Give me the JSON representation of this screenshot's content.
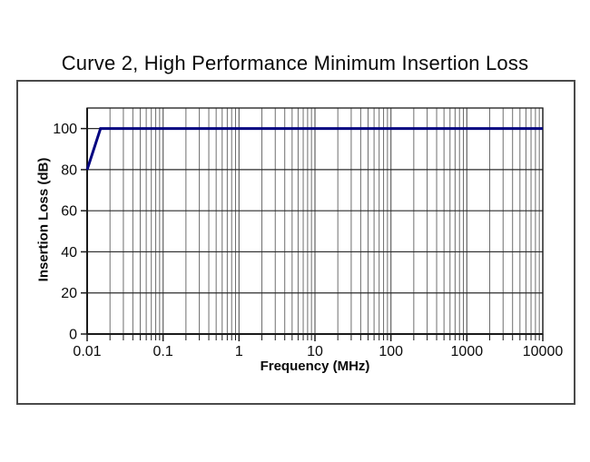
{
  "title": "Curve 2, High Performance Minimum Insertion Loss",
  "chart_data": {
    "type": "line",
    "title": "Curve 2, High Performance Minimum Insertion Loss",
    "xlabel": "Frequency (MHz)",
    "ylabel": "Insertion Loss (dB)",
    "x_scale": "log",
    "xlim": [
      0.01,
      10000
    ],
    "ylim": [
      0,
      110
    ],
    "x_major_ticks": [
      0.01,
      0.1,
      1,
      10,
      100,
      1000,
      10000
    ],
    "x_tick_labels": [
      "0.01",
      "0.1",
      "1",
      "10",
      "100",
      "1000",
      "10000"
    ],
    "y_major_ticks": [
      0,
      20,
      40,
      60,
      80,
      100
    ],
    "y_tick_labels": [
      "0",
      "20",
      "40",
      "60",
      "80",
      "100"
    ],
    "grid": {
      "x_minor_gridlines": true,
      "y_minor_gridlines": false
    },
    "legend": "none",
    "series": [
      {
        "name": "Curve 2",
        "color": "#000080",
        "points": [
          [
            0.01,
            80
          ],
          [
            0.015,
            100
          ],
          [
            10000,
            100
          ]
        ]
      }
    ],
    "colors": {
      "curve": "#000080",
      "x_gridline": "#6e6e6e",
      "y_gridline": "#2b2b2b",
      "axis": "#1a1a1a",
      "figure_border": "#4a4a4a",
      "background": "#ffffff"
    }
  }
}
